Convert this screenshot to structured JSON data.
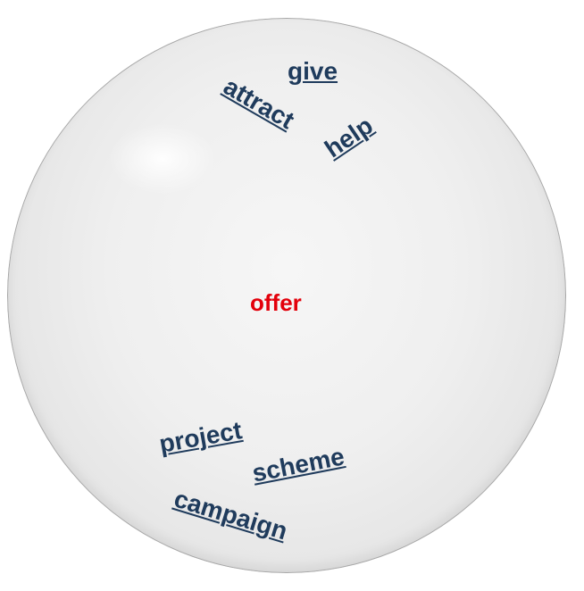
{
  "center_word": "offer",
  "related_words": {
    "give": "give",
    "attract": "attract",
    "help": "help",
    "project": "project",
    "scheme": "scheme",
    "campaign": "campaign"
  },
  "colors": {
    "center_word": "#e3000b",
    "related_words": "#1f3b5c",
    "sphere": "#efefef"
  }
}
